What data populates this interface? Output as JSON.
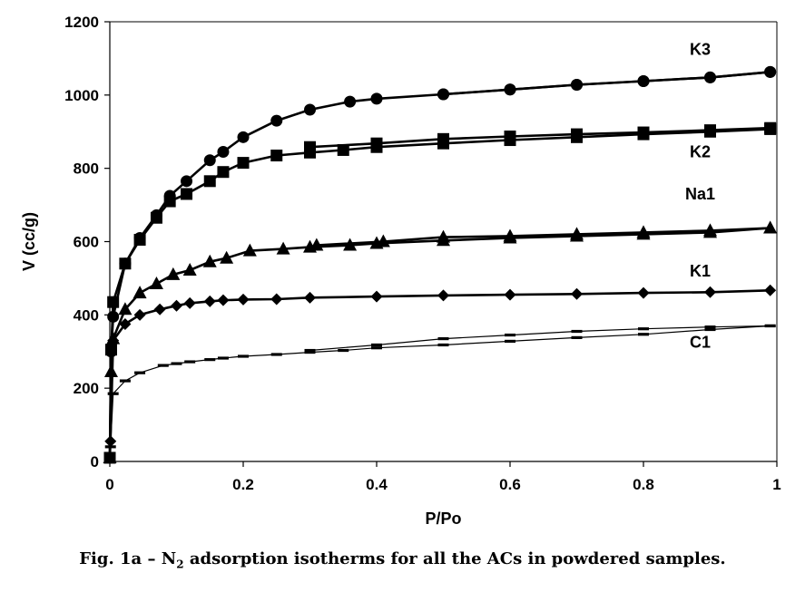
{
  "chart_data": {
    "type": "line",
    "title": "",
    "xlabel": "P/Po",
    "ylabel": "V (cc/g)",
    "xlim": [
      0,
      1
    ],
    "ylim": [
      0,
      1200
    ],
    "xticks": [
      "0",
      "0.2",
      "0.4",
      "0.6",
      "0.8",
      "1"
    ],
    "yticks": [
      "0",
      "200",
      "400",
      "600",
      "800",
      "1000",
      "1200"
    ],
    "grid": false,
    "legend": "none",
    "series": [
      {
        "name": "K3",
        "marker": "circle",
        "color": "#000000",
        "adsorption": [
          [
            0,
            10
          ],
          [
            0.002,
            300
          ],
          [
            0.005,
            395
          ],
          [
            0.023,
            540
          ],
          [
            0.045,
            610
          ],
          [
            0.07,
            672
          ],
          [
            0.09,
            725
          ],
          [
            0.115,
            765
          ],
          [
            0.15,
            822
          ],
          [
            0.17,
            845
          ],
          [
            0.2,
            885
          ],
          [
            0.25,
            930
          ],
          [
            0.3,
            960
          ],
          [
            0.36,
            982
          ],
          [
            0.4,
            990
          ],
          [
            0.5,
            1002
          ],
          [
            0.6,
            1015
          ],
          [
            0.7,
            1028
          ],
          [
            0.8,
            1038
          ],
          [
            0.9,
            1048
          ],
          [
            0.99,
            1063
          ]
        ],
        "desorption": [
          [
            0.99,
            1063
          ],
          [
            0.9,
            1048
          ],
          [
            0.8,
            1038
          ],
          [
            0.7,
            1028
          ],
          [
            0.6,
            1015
          ],
          [
            0.5,
            1002
          ]
        ]
      },
      {
        "name": "K2",
        "marker": "square",
        "color": "#000000",
        "adsorption": [
          [
            0,
            10
          ],
          [
            0.002,
            305
          ],
          [
            0.005,
            435
          ],
          [
            0.023,
            540
          ],
          [
            0.045,
            605
          ],
          [
            0.07,
            665
          ],
          [
            0.09,
            710
          ],
          [
            0.115,
            730
          ],
          [
            0.15,
            765
          ],
          [
            0.17,
            790
          ],
          [
            0.2,
            815
          ],
          [
            0.25,
            835
          ],
          [
            0.3,
            843
          ],
          [
            0.35,
            850
          ],
          [
            0.4,
            858
          ],
          [
            0.5,
            868
          ],
          [
            0.6,
            877
          ],
          [
            0.7,
            885
          ],
          [
            0.8,
            893
          ],
          [
            0.9,
            900
          ],
          [
            0.99,
            907
          ]
        ],
        "desorption": [
          [
            0.99,
            910
          ],
          [
            0.9,
            904
          ],
          [
            0.8,
            898
          ],
          [
            0.7,
            893
          ],
          [
            0.6,
            887
          ],
          [
            0.5,
            880
          ],
          [
            0.4,
            868
          ],
          [
            0.3,
            858
          ]
        ]
      },
      {
        "name": "Na1",
        "marker": "triangle",
        "color": "#000000",
        "adsorption": [
          [
            0,
            10
          ],
          [
            0.002,
            245
          ],
          [
            0.005,
            335
          ],
          [
            0.023,
            415
          ],
          [
            0.045,
            460
          ],
          [
            0.07,
            485
          ],
          [
            0.095,
            510
          ],
          [
            0.12,
            522
          ],
          [
            0.15,
            545
          ],
          [
            0.175,
            555
          ],
          [
            0.21,
            575
          ],
          [
            0.26,
            580
          ],
          [
            0.3,
            585
          ],
          [
            0.36,
            590
          ],
          [
            0.4,
            595
          ],
          [
            0.5,
            603
          ],
          [
            0.6,
            610
          ],
          [
            0.7,
            615
          ],
          [
            0.8,
            620
          ],
          [
            0.9,
            625
          ],
          [
            0.99,
            637
          ]
        ],
        "desorption": [
          [
            0.99,
            637
          ],
          [
            0.9,
            630
          ],
          [
            0.8,
            625
          ],
          [
            0.7,
            620
          ],
          [
            0.6,
            615
          ],
          [
            0.5,
            612
          ],
          [
            0.41,
            600
          ],
          [
            0.31,
            590
          ]
        ]
      },
      {
        "name": "K1",
        "marker": "diamond",
        "color": "#000000",
        "adsorption": [
          [
            0,
            10
          ],
          [
            0.001,
            55
          ],
          [
            0.005,
            330
          ],
          [
            0.023,
            375
          ],
          [
            0.045,
            400
          ],
          [
            0.075,
            415
          ],
          [
            0.1,
            425
          ],
          [
            0.12,
            432
          ],
          [
            0.15,
            437
          ],
          [
            0.17,
            440
          ],
          [
            0.2,
            442
          ],
          [
            0.25,
            443
          ],
          [
            0.3,
            447
          ],
          [
            0.4,
            450
          ],
          [
            0.5,
            453
          ],
          [
            0.6,
            455
          ],
          [
            0.7,
            457
          ],
          [
            0.8,
            460
          ],
          [
            0.9,
            462
          ],
          [
            0.99,
            467
          ]
        ],
        "desorption": []
      },
      {
        "name": "C1",
        "marker": "dash",
        "color": "#000000",
        "adsorption": [
          [
            0,
            10
          ],
          [
            0.001,
            40
          ],
          [
            0.005,
            185
          ],
          [
            0.023,
            220
          ],
          [
            0.045,
            242
          ],
          [
            0.08,
            262
          ],
          [
            0.1,
            267
          ],
          [
            0.12,
            272
          ],
          [
            0.15,
            278
          ],
          [
            0.17,
            282
          ],
          [
            0.2,
            287
          ],
          [
            0.25,
            292
          ],
          [
            0.3,
            298
          ],
          [
            0.35,
            303
          ],
          [
            0.4,
            310
          ],
          [
            0.5,
            318
          ],
          [
            0.6,
            328
          ],
          [
            0.7,
            338
          ],
          [
            0.8,
            347
          ],
          [
            0.9,
            360
          ],
          [
            0.99,
            370
          ]
        ],
        "desorption": [
          [
            0.99,
            370
          ],
          [
            0.9,
            367
          ],
          [
            0.8,
            362
          ],
          [
            0.7,
            355
          ],
          [
            0.6,
            345
          ],
          [
            0.5,
            335
          ],
          [
            0.4,
            318
          ],
          [
            0.3,
            303
          ]
        ]
      }
    ],
    "annotations": [
      {
        "text": "K3",
        "x": 0.885,
        "y": 1110
      },
      {
        "text": "K2",
        "x": 0.885,
        "y": 830
      },
      {
        "text": "Na1",
        "x": 0.885,
        "y": 715
      },
      {
        "text": "K1",
        "x": 0.885,
        "y": 505
      },
      {
        "text": "C1",
        "x": 0.885,
        "y": 310
      }
    ]
  },
  "caption": {
    "prefix": "Fig. 1a – N",
    "subscript": "2",
    "suffix": " adsorption isotherms for all the ACs in powdered samples."
  }
}
